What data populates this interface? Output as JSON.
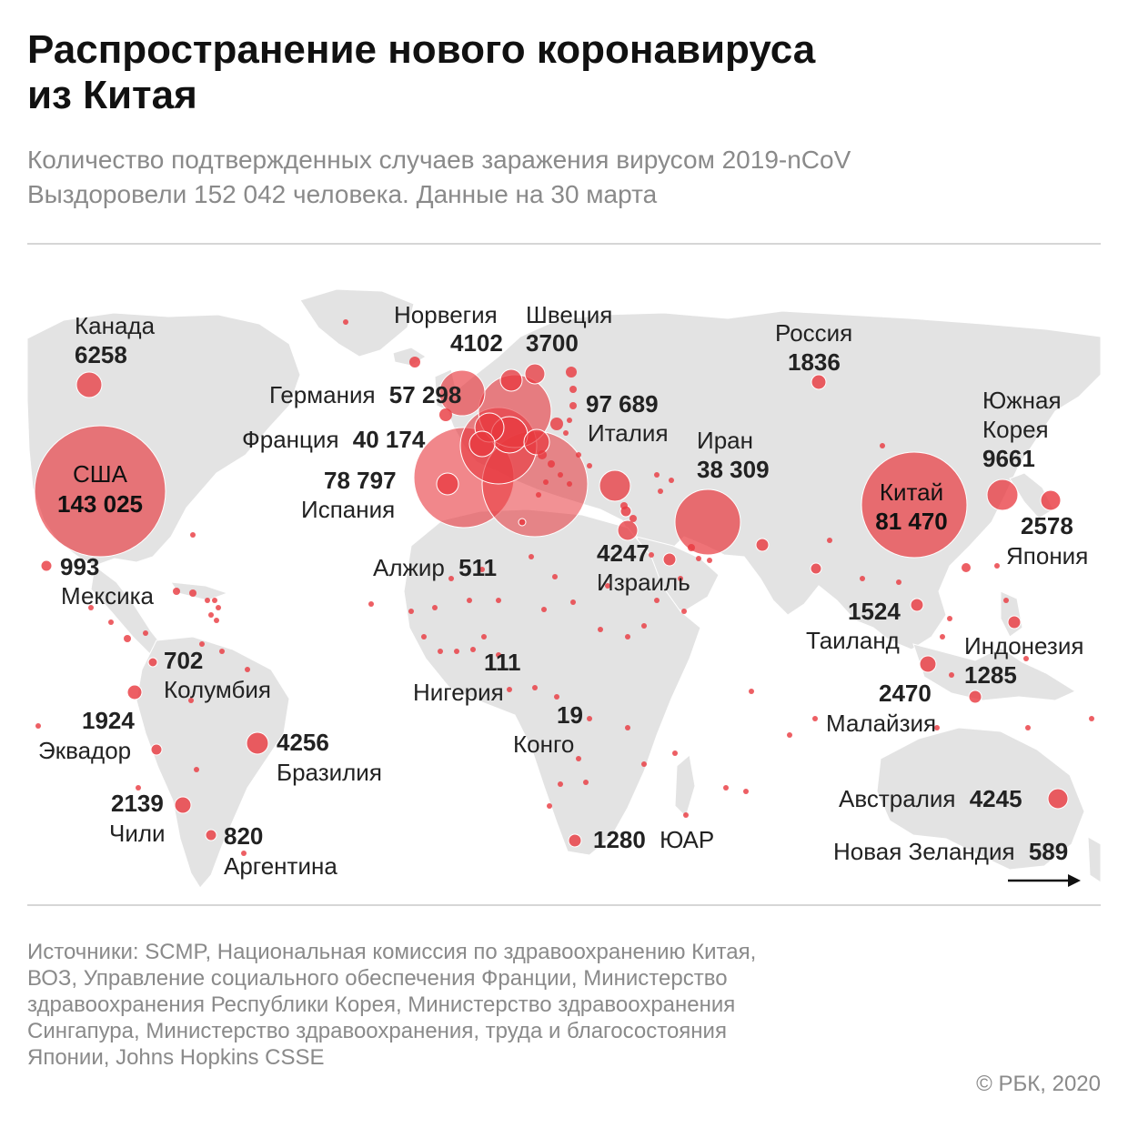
{
  "title": {
    "line1": "Распространение нового коронавируса",
    "line2": "из Китая"
  },
  "subtitle": {
    "line1": "Количество подтвержденных случаев заражения вирусом 2019-nCoV",
    "line2": "Выздоровели 152 042 человека. Данные на 30 марта"
  },
  "colors": {
    "land": "#e3e3e3",
    "bubble": "#e8373d",
    "text_muted": "#8a8a8a"
  },
  "countries": {
    "usa": {
      "name": "США",
      "value": "143 025",
      "cases": 143025
    },
    "canada": {
      "name": "Канада",
      "value": "6258",
      "cases": 6258
    },
    "mexico": {
      "name": "Мексика",
      "value": "993",
      "cases": 993
    },
    "colombia": {
      "name": "Колумбия",
      "value": "702",
      "cases": 702
    },
    "ecuador": {
      "name": "Эквадор",
      "value": "1924",
      "cases": 1924
    },
    "brazil": {
      "name": "Бразилия",
      "value": "4256",
      "cases": 4256
    },
    "chile": {
      "name": "Чили",
      "value": "2139",
      "cases": 2139
    },
    "argentina": {
      "name": "Аргентина",
      "value": "820",
      "cases": 820
    },
    "norway": {
      "name": "Норвегия",
      "value": "4102",
      "cases": 4102
    },
    "sweden": {
      "name": "Швеция",
      "value": "3700",
      "cases": 3700
    },
    "germany": {
      "name": "Германия",
      "value": "57 298",
      "cases": 57298
    },
    "france": {
      "name": "Франция",
      "value": "40 174",
      "cases": 40174
    },
    "spain": {
      "name": "Испания",
      "value": "78 797",
      "cases": 78797
    },
    "italy": {
      "name": "Италия",
      "value": "97 689",
      "cases": 97689
    },
    "iran": {
      "name": "Иран",
      "value": "38 309",
      "cases": 38309
    },
    "israel": {
      "name": "Израиль",
      "value": "4247",
      "cases": 4247
    },
    "algeria": {
      "name": "Алжир",
      "value": "511",
      "cases": 511
    },
    "nigeria": {
      "name": "Нигерия",
      "value": "111",
      "cases": 111
    },
    "congo": {
      "name": "Конго",
      "value": "19",
      "cases": 19
    },
    "south_africa": {
      "name": "ЮАР",
      "value": "1280",
      "cases": 1280
    },
    "russia": {
      "name": "Россия",
      "value": "1836",
      "cases": 1836
    },
    "china": {
      "name": "Китай",
      "value": "81 470",
      "cases": 81470
    },
    "south_korea": {
      "name_line1": "Южная",
      "name_line2": "Корея",
      "value": "9661",
      "cases": 9661
    },
    "japan": {
      "name": "Япония",
      "value": "2578",
      "cases": 2578
    },
    "thailand": {
      "name": "Таиланд",
      "value": "1524",
      "cases": 1524
    },
    "malaysia": {
      "name": "Малайзия",
      "value": "2470",
      "cases": 2470
    },
    "indonesia": {
      "name": "Индонезия",
      "value": "1285",
      "cases": 1285
    },
    "australia": {
      "name": "Австралия",
      "value": "4245",
      "cases": 4245
    },
    "new_zealand": {
      "name": "Новая Зеландия",
      "value": "589",
      "cases": 589
    }
  },
  "sources": {
    "line1": "Источники: SCMP, Национальная комиссия по здравоохранению Китая,",
    "line2": "ВОЗ, Управление социального обеспечения Франции, Министерство",
    "line3": "здравоохранения Республики Корея, Министерство здравоохранения",
    "line4": "Сингапура, Министерство здравоохранения, труда и благосостояния",
    "line5": "Японии, Johns Hopkins CSSE"
  },
  "copyright": "© РБК, 2020"
}
